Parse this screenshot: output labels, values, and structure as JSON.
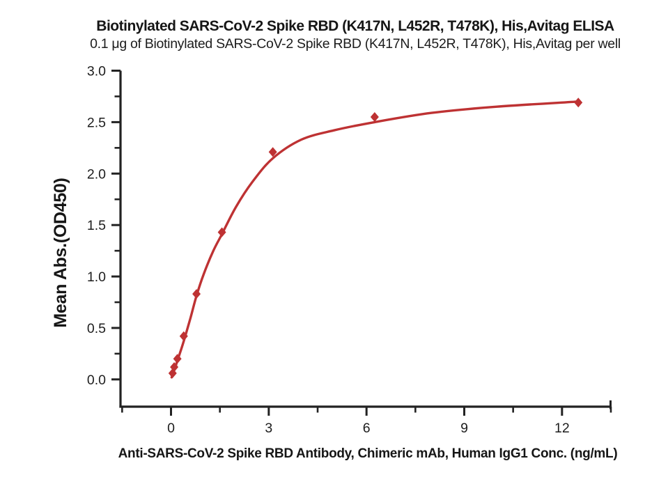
{
  "chart_data": {
    "type": "scatter",
    "title": "Biotinylated SARS-CoV-2 Spike RBD (K417N, L452R, T478K), His,Avitag ELISA",
    "subtitle": "0.1 μg of Biotinylated SARS-CoV-2 Spike RBD (K417N, L452R, T478K), His,Avitag per well",
    "xlabel": "Anti-SARS-CoV-2 Spike RBD Antibody, Chimeric mAb, Human IgG1 Conc. (ng/mL)",
    "ylabel": "Mean Abs.(OD450)",
    "grid": false,
    "legend": "none",
    "xlim": [
      -1.55,
      13.5
    ],
    "ylim": [
      -0.265,
      3.0
    ],
    "x_ticks": {
      "major": [
        0,
        3,
        6,
        9,
        12
      ],
      "major_labels": [
        "0",
        "3",
        "6",
        "9",
        "12"
      ],
      "minor": [
        -1.5,
        1.5,
        4.5,
        7.5,
        10.5,
        13.5
      ]
    },
    "y_ticks": {
      "major": [
        0,
        0.5,
        1.0,
        1.5,
        2.0,
        2.5,
        3.0
      ],
      "major_labels": [
        "0.0",
        "0.5",
        "1.0",
        "1.5",
        "2.0",
        "2.5",
        "3.0"
      ],
      "minor": [
        0.25,
        0.75,
        1.25,
        1.75,
        2.25,
        2.75
      ]
    },
    "series": [
      {
        "marker": "diamond",
        "color": "#BE3233",
        "x": [
          0.0488,
          0.0977,
          0.1953,
          0.3906,
          0.7813,
          1.5625,
          3.125,
          6.25,
          12.5
        ],
        "y": [
          0.06,
          0.12,
          0.2,
          0.42,
          0.83,
          1.43,
          2.21,
          2.55,
          2.69
        ]
      }
    ],
    "fit_curve": {
      "model": "4PL",
      "color": "#BE3233",
      "width": 3.4,
      "points": [
        [
          0.02,
          0.02
        ],
        [
          0.1,
          0.09
        ],
        [
          0.195,
          0.18
        ],
        [
          0.39,
          0.37
        ],
        [
          0.6,
          0.6
        ],
        [
          0.78,
          0.81
        ],
        [
          1.0,
          1.02
        ],
        [
          1.3,
          1.25
        ],
        [
          1.56,
          1.41
        ],
        [
          2.0,
          1.68
        ],
        [
          2.5,
          1.92
        ],
        [
          3.13,
          2.15
        ],
        [
          4.0,
          2.33
        ],
        [
          5.0,
          2.42
        ],
        [
          6.25,
          2.5
        ],
        [
          8.0,
          2.59
        ],
        [
          10.0,
          2.65
        ],
        [
          12.5,
          2.7
        ]
      ]
    },
    "axis_color": "#222222",
    "text_color": "#1d1d1d"
  }
}
